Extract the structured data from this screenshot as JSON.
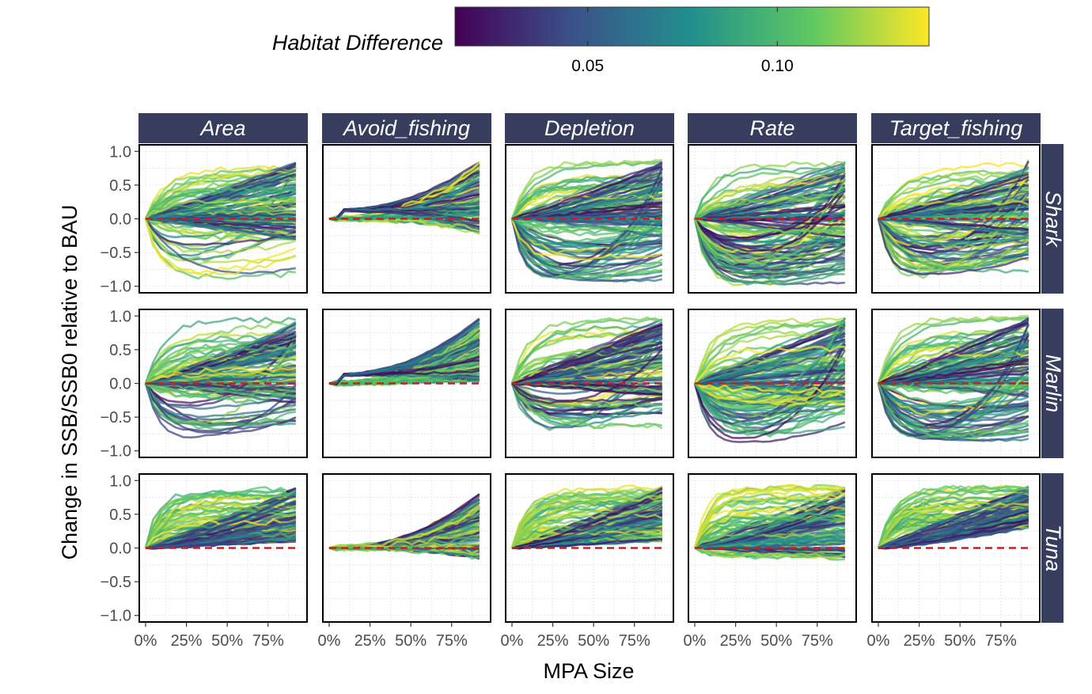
{
  "chart_data": {
    "type": "line",
    "title": "",
    "xlabel": "MPA Size",
    "ylabel": "Change in SSB/SSB0 relative to BAU",
    "x_ticks": [
      "0%",
      "25%",
      "50%",
      "75%"
    ],
    "x_tick_values": [
      0,
      0.25,
      0.5,
      0.75
    ],
    "xlim": [
      0,
      0.95
    ],
    "y_ticks": [
      "1.0",
      "0.5",
      "0.0",
      "−0.5",
      "−1.0"
    ],
    "y_tick_values": [
      1.0,
      0.5,
      0.0,
      -0.5,
      -1.0
    ],
    "ylim": [
      -1.05,
      1.05
    ],
    "columns": [
      "Area",
      "Avoid_fishing",
      "Depletion",
      "Rate",
      "Target_fishing"
    ],
    "rows": [
      "Shark",
      "Marlin",
      "Tuna"
    ],
    "colorbar": {
      "title": "Habitat Difference",
      "ticks": [
        "0.05",
        "0.10"
      ],
      "tick_values": [
        0.05,
        0.1
      ],
      "range": [
        0.015,
        0.14
      ],
      "palette": [
        "#440154",
        "#3b528b",
        "#21908c",
        "#5dc863",
        "#fde725"
      ]
    },
    "reference_line": {
      "y": 0,
      "style": "dashed",
      "color": "#d7191c"
    },
    "grid": true,
    "legend_position": "top",
    "series_note_hidden": "",
    "panels": [
      {
        "row": "Shark",
        "column": "Area",
        "end_range": [
          -0.3,
          0.85
        ],
        "dip_fraction": 0.12,
        "dip_depth": -0.95
      },
      {
        "row": "Shark",
        "column": "Avoid_fishing",
        "end_range": [
          -0.2,
          0.85
        ],
        "dip_fraction": 0.02,
        "dip_depth": -0.85
      },
      {
        "row": "Shark",
        "column": "Depletion",
        "end_range": [
          -0.3,
          0.85
        ],
        "dip_fraction": 0.3,
        "dip_depth": -0.98
      },
      {
        "row": "Shark",
        "column": "Rate",
        "end_range": [
          -0.4,
          0.85
        ],
        "dip_fraction": 0.4,
        "dip_depth": -1.0
      },
      {
        "row": "Shark",
        "column": "Target_fishing",
        "end_range": [
          -0.3,
          0.85
        ],
        "dip_fraction": 0.3,
        "dip_depth": -0.95
      },
      {
        "row": "Marlin",
        "column": "Area",
        "end_range": [
          -0.3,
          0.95
        ],
        "dip_fraction": 0.1,
        "dip_depth": -0.9
      },
      {
        "row": "Marlin",
        "column": "Avoid_fishing",
        "end_range": [
          0.0,
          0.98
        ],
        "dip_fraction": 0.0,
        "dip_depth": -0.1
      },
      {
        "row": "Marlin",
        "column": "Depletion",
        "end_range": [
          -0.2,
          0.95
        ],
        "dip_fraction": 0.25,
        "dip_depth": -0.8
      },
      {
        "row": "Marlin",
        "column": "Rate",
        "end_range": [
          -0.3,
          0.98
        ],
        "dip_fraction": 0.35,
        "dip_depth": -0.95
      },
      {
        "row": "Marlin",
        "column": "Target_fishing",
        "end_range": [
          -0.2,
          0.98
        ],
        "dip_fraction": 0.3,
        "dip_depth": -0.9
      },
      {
        "row": "Tuna",
        "column": "Area",
        "end_range": [
          0.1,
          0.9
        ],
        "dip_fraction": 0.0,
        "dip_depth": 0.0
      },
      {
        "row": "Tuna",
        "column": "Avoid_fishing",
        "end_range": [
          -0.15,
          0.8
        ],
        "dip_fraction": 0.0,
        "dip_depth": 0.0
      },
      {
        "row": "Tuna",
        "column": "Depletion",
        "end_range": [
          0.1,
          0.9
        ],
        "dip_fraction": 0.0,
        "dip_depth": 0.0
      },
      {
        "row": "Tuna",
        "column": "Rate",
        "end_range": [
          -0.15,
          0.9
        ],
        "dip_fraction": 0.0,
        "dip_depth": 0.0
      },
      {
        "row": "Tuna",
        "column": "Target_fishing",
        "end_range": [
          0.3,
          0.9
        ],
        "dip_fraction": 0.0,
        "dip_depth": 0.0
      }
    ]
  }
}
